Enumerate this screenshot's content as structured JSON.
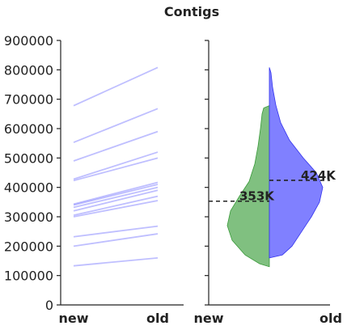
{
  "chart_data": [
    {
      "type": "line",
      "title": "Contigs",
      "categories": [
        "new",
        "old"
      ],
      "ylim": [
        0,
        900000
      ],
      "yticks": [
        0,
        100000,
        200000,
        300000,
        400000,
        500000,
        600000,
        700000,
        800000,
        900000
      ],
      "ytick_labels": [
        "0",
        "100000",
        "200000",
        "300000",
        "400000",
        "500000",
        "600000",
        "700000",
        "800000",
        "900000"
      ],
      "grid": false,
      "line_color": "#8080ff",
      "pairs": [
        [
          678000,
          808000
        ],
        [
          553000,
          668000
        ],
        [
          490000,
          590000
        ],
        [
          428000,
          520000
        ],
        [
          423000,
          500000
        ],
        [
          343000,
          417000
        ],
        [
          340000,
          410000
        ],
        [
          332000,
          400000
        ],
        [
          320000,
          390000
        ],
        [
          305000,
          370000
        ],
        [
          300000,
          355000
        ],
        [
          232000,
          268000
        ],
        [
          200000,
          242000
        ],
        [
          133000,
          160000
        ]
      ]
    },
    {
      "type": "violin",
      "categories": [
        "new",
        "old"
      ],
      "ylim": [
        0,
        900000
      ],
      "split": true,
      "series": [
        {
          "color": "#80c080",
          "side": "left",
          "median": 353000,
          "median_label": "353K",
          "range": [
            130000,
            678000
          ]
        },
        {
          "color": "#8080ff",
          "side": "right",
          "median": 424000,
          "median_label": "424K",
          "range": [
            160000,
            808000
          ]
        }
      ]
    }
  ]
}
